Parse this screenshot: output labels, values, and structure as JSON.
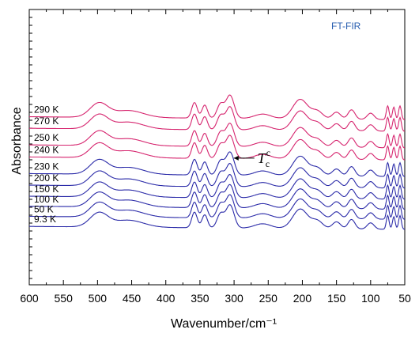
{
  "chart_data": {
    "type": "line",
    "title": "",
    "annotation_title": "FT-FIR",
    "xlabel": "Wavenumber/cm⁻¹",
    "ylabel": "Absorbance",
    "x_reversed": true,
    "xlim": [
      600,
      50
    ],
    "x_ticks": [
      600,
      550,
      500,
      450,
      400,
      350,
      300,
      250,
      200,
      150,
      100,
      50
    ],
    "grid": false,
    "colors": {
      "high_temp": "#d6246e",
      "low_temp": "#2a2aa8",
      "axis": "#000000"
    },
    "spectrum_features": {
      "peaks": [
        {
          "x": 498,
          "amp": 0.55,
          "w": 13
        },
        {
          "x": 455,
          "amp": 0.28,
          "w": 22
        },
        {
          "x": 358,
          "amp": 0.62,
          "w": 4
        },
        {
          "x": 343,
          "amp": 0.52,
          "w": 4
        },
        {
          "x": 320,
          "amp": 0.55,
          "w": 5
        },
        {
          "x": 306,
          "amp": 0.92,
          "w": 6
        },
        {
          "x": 258,
          "amp": 0.18,
          "w": 12
        },
        {
          "x": 203,
          "amp": 0.78,
          "w": 11
        },
        {
          "x": 178,
          "amp": 0.3,
          "w": 8
        },
        {
          "x": 150,
          "amp": 0.28,
          "w": 6
        },
        {
          "x": 128,
          "amp": 0.38,
          "w": 5
        },
        {
          "x": 100,
          "amp": 0.25,
          "w": 5
        },
        {
          "x": 75,
          "amp": 0.55,
          "w": 2
        },
        {
          "x": 66,
          "amp": 0.5,
          "w": 2
        },
        {
          "x": 57,
          "amp": 0.55,
          "w": 2
        }
      ],
      "baseline_slope": 0.12
    },
    "series": [
      {
        "name": "9.3 K",
        "color": "#2a2aa8",
        "offset": 0.0
      },
      {
        "name": "50 K",
        "color": "#2a2aa8",
        "offset": 0.2
      },
      {
        "name": "100 K",
        "color": "#2a2aa8",
        "offset": 0.4
      },
      {
        "name": "150 K",
        "color": "#2a2aa8",
        "offset": 0.6
      },
      {
        "name": "200 K",
        "color": "#2a2aa8",
        "offset": 0.82
      },
      {
        "name": "230 K",
        "color": "#2a2aa8",
        "offset": 1.05
      },
      {
        "name": "240 K",
        "color": "#d6246e",
        "offset": 1.38
      },
      {
        "name": "250 K",
        "color": "#d6246e",
        "offset": 1.62
      },
      {
        "name": "270 K",
        "color": "#d6246e",
        "offset": 1.95
      },
      {
        "name": "290 K",
        "color": "#d6246e",
        "offset": 2.18
      }
    ],
    "annotations": [
      {
        "text": "T",
        "sub": "c",
        "sup": "c",
        "points_to_wavenumber": 305,
        "between": [
          "230 K",
          "200 K"
        ]
      }
    ]
  }
}
